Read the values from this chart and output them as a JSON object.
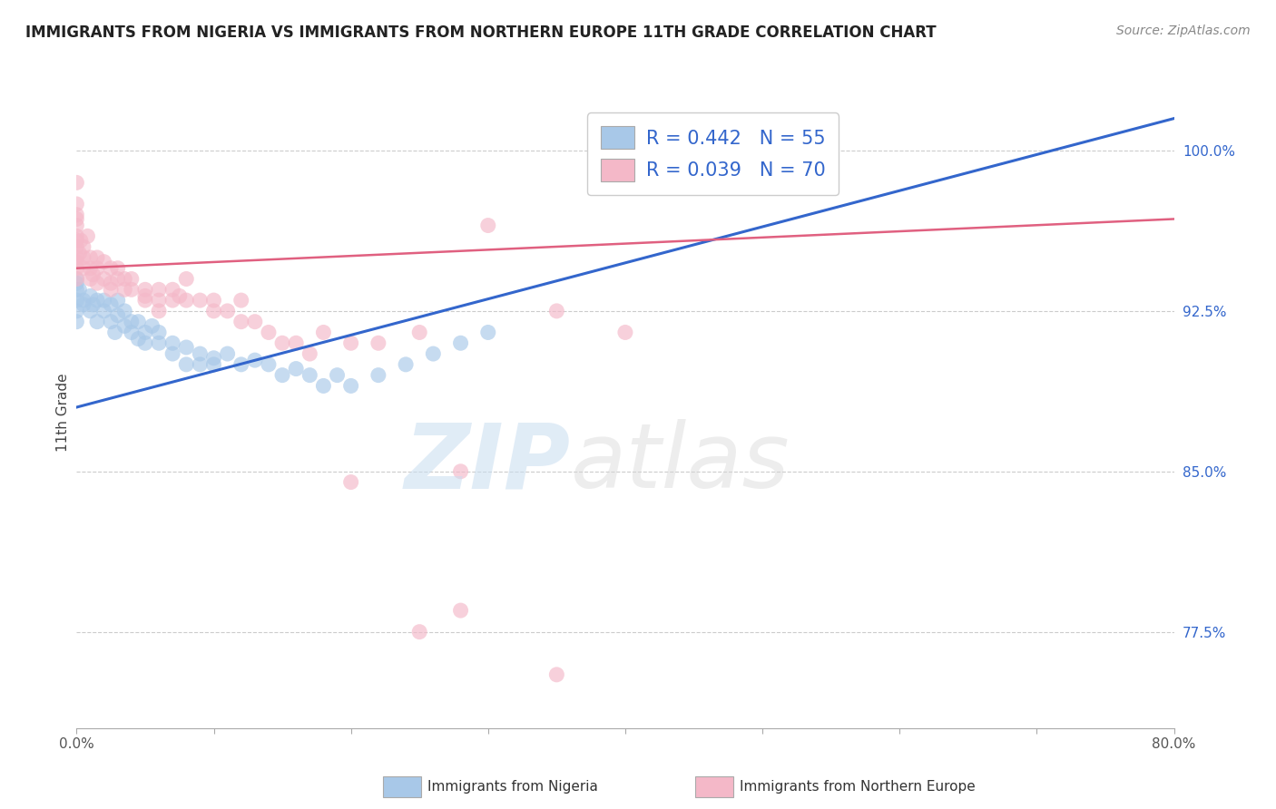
{
  "title": "IMMIGRANTS FROM NIGERIA VS IMMIGRANTS FROM NORTHERN EUROPE 11TH GRADE CORRELATION CHART",
  "source": "Source: ZipAtlas.com",
  "ylabel": "11th Grade",
  "x_tick_labels_bottom": [
    "0.0%",
    "80.0%"
  ],
  "x_tick_values_bottom": [
    0.0,
    80.0
  ],
  "y_tick_labels": [
    "100.0%",
    "92.5%",
    "85.0%",
    "77.5%"
  ],
  "y_tick_values": [
    100.0,
    92.5,
    85.0,
    77.5
  ],
  "xlim": [
    0.0,
    80.0
  ],
  "ylim": [
    73.0,
    102.5
  ],
  "legend_nigeria_label": "R = 0.442   N = 55",
  "legend_northern_label": "R = 0.039   N = 70",
  "legend_nigeria_color": "#a8c8e8",
  "legend_northern_color": "#f4b8c8",
  "nigeria_line_color": "#3366cc",
  "northern_line_color": "#e06080",
  "watermark_zip": "ZIP",
  "watermark_atlas": "atlas",
  "nigeria_scatter": [
    [
      0.0,
      93.0
    ],
    [
      0.0,
      93.5
    ],
    [
      0.0,
      92.5
    ],
    [
      0.0,
      94.0
    ],
    [
      0.0,
      93.8
    ],
    [
      0.5,
      93.0
    ],
    [
      0.5,
      92.8
    ],
    [
      1.0,
      93.2
    ],
    [
      1.0,
      92.5
    ],
    [
      1.5,
      93.0
    ],
    [
      1.5,
      92.0
    ],
    [
      2.0,
      93.0
    ],
    [
      2.0,
      92.5
    ],
    [
      2.5,
      92.8
    ],
    [
      2.5,
      92.0
    ],
    [
      3.0,
      93.0
    ],
    [
      3.0,
      92.3
    ],
    [
      3.5,
      92.5
    ],
    [
      3.5,
      91.8
    ],
    [
      4.0,
      92.0
    ],
    [
      4.0,
      91.5
    ],
    [
      4.5,
      92.0
    ],
    [
      5.0,
      91.5
    ],
    [
      5.0,
      91.0
    ],
    [
      5.5,
      91.8
    ],
    [
      6.0,
      91.5
    ],
    [
      6.0,
      91.0
    ],
    [
      7.0,
      91.0
    ],
    [
      7.0,
      90.5
    ],
    [
      8.0,
      90.8
    ],
    [
      8.0,
      90.0
    ],
    [
      9.0,
      90.5
    ],
    [
      10.0,
      90.3
    ],
    [
      10.0,
      90.0
    ],
    [
      11.0,
      90.5
    ],
    [
      12.0,
      90.0
    ],
    [
      13.0,
      90.2
    ],
    [
      14.0,
      90.0
    ],
    [
      15.0,
      89.5
    ],
    [
      16.0,
      89.8
    ],
    [
      17.0,
      89.5
    ],
    [
      18.0,
      89.0
    ],
    [
      19.0,
      89.5
    ],
    [
      20.0,
      89.0
    ],
    [
      22.0,
      89.5
    ],
    [
      24.0,
      90.0
    ],
    [
      26.0,
      90.5
    ],
    [
      28.0,
      91.0
    ],
    [
      30.0,
      91.5
    ],
    [
      0.0,
      92.0
    ],
    [
      0.2,
      93.5
    ],
    [
      1.2,
      92.8
    ],
    [
      2.8,
      91.5
    ],
    [
      4.5,
      91.2
    ],
    [
      9.0,
      90.0
    ]
  ],
  "northern_scatter": [
    [
      0.0,
      97.5
    ],
    [
      0.0,
      96.8
    ],
    [
      0.0,
      96.0
    ],
    [
      0.0,
      95.5
    ],
    [
      0.0,
      95.0
    ],
    [
      0.0,
      94.8
    ],
    [
      0.0,
      94.5
    ],
    [
      0.0,
      94.0
    ],
    [
      0.0,
      95.8
    ],
    [
      0.0,
      96.5
    ],
    [
      0.5,
      95.5
    ],
    [
      0.5,
      95.0
    ],
    [
      0.5,
      94.5
    ],
    [
      1.0,
      95.0
    ],
    [
      1.0,
      94.5
    ],
    [
      1.0,
      94.0
    ],
    [
      1.5,
      95.0
    ],
    [
      1.5,
      94.5
    ],
    [
      2.0,
      94.8
    ],
    [
      2.0,
      94.0
    ],
    [
      2.5,
      94.5
    ],
    [
      2.5,
      93.5
    ],
    [
      3.0,
      94.5
    ],
    [
      3.0,
      94.0
    ],
    [
      3.5,
      94.0
    ],
    [
      4.0,
      94.0
    ],
    [
      4.0,
      93.5
    ],
    [
      5.0,
      93.5
    ],
    [
      5.0,
      93.0
    ],
    [
      6.0,
      93.5
    ],
    [
      6.0,
      93.0
    ],
    [
      7.0,
      93.5
    ],
    [
      7.0,
      93.0
    ],
    [
      8.0,
      93.0
    ],
    [
      9.0,
      93.0
    ],
    [
      10.0,
      93.0
    ],
    [
      10.0,
      92.5
    ],
    [
      11.0,
      92.5
    ],
    [
      12.0,
      93.0
    ],
    [
      13.0,
      92.0
    ],
    [
      14.0,
      91.5
    ],
    [
      15.0,
      91.0
    ],
    [
      16.0,
      91.0
    ],
    [
      18.0,
      91.5
    ],
    [
      20.0,
      91.0
    ],
    [
      22.0,
      91.0
    ],
    [
      25.0,
      91.5
    ],
    [
      28.0,
      85.0
    ],
    [
      30.0,
      96.5
    ],
    [
      35.0,
      92.5
    ],
    [
      40.0,
      91.5
    ],
    [
      8.0,
      94.0
    ],
    [
      12.0,
      92.0
    ],
    [
      0.2,
      95.2
    ],
    [
      1.2,
      94.2
    ],
    [
      2.5,
      93.8
    ],
    [
      6.0,
      92.5
    ],
    [
      17.0,
      90.5
    ],
    [
      20.0,
      84.5
    ],
    [
      25.0,
      77.5
    ],
    [
      28.0,
      78.5
    ],
    [
      35.0,
      75.5
    ],
    [
      5.0,
      93.2
    ],
    [
      0.3,
      95.8
    ],
    [
      3.5,
      93.5
    ],
    [
      7.5,
      93.2
    ],
    [
      0.0,
      97.0
    ],
    [
      1.5,
      93.8
    ],
    [
      0.8,
      96.0
    ],
    [
      0.0,
      98.5
    ]
  ],
  "nigeria_trendline_x": [
    0.0,
    80.0
  ],
  "nigeria_trendline_y": [
    88.0,
    101.5
  ],
  "northern_trendline_x": [
    0.0,
    80.0
  ],
  "northern_trendline_y": [
    94.5,
    96.8
  ]
}
